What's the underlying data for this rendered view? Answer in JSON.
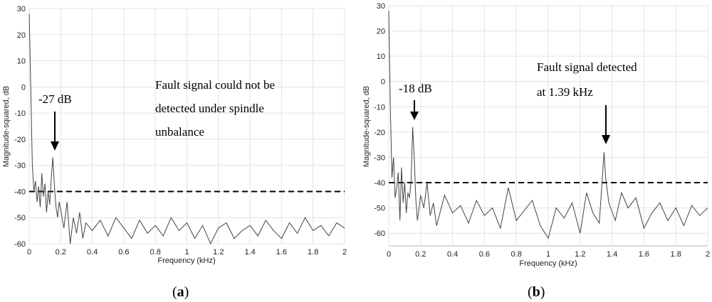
{
  "chart_data": [
    {
      "type": "line",
      "panel_label": "(a)",
      "caption": {
        "open": "(",
        "letter": "a",
        "close": ")"
      },
      "xlabel": "Frequency (kHz)",
      "ylabel": "Magnitude-squared, dB",
      "xlim": [
        0,
        2
      ],
      "ylim": [
        -60,
        30
      ],
      "xticks": [
        "0",
        "0.2",
        "0.4",
        "0.6",
        "0.8",
        "1",
        "1.2",
        "1.4",
        "1.6",
        "1.8",
        "2"
      ],
      "yticks": [
        "30",
        "20",
        "10",
        "0",
        "-10",
        "-20",
        "-30",
        "-40",
        "-50",
        "-60"
      ],
      "grid": true,
      "threshold_db": -40,
      "series": [
        {
          "x": [
            0,
            0.01,
            0.02,
            0.03,
            0.04,
            0.05,
            0.06,
            0.07,
            0.08,
            0.09,
            0.1,
            0.11,
            0.12,
            0.13,
            0.14,
            0.15,
            0.16,
            0.17,
            0.18,
            0.19,
            0.2,
            0.22,
            0.24,
            0.26,
            0.28,
            0.3,
            0.32,
            0.34,
            0.36,
            0.4,
            0.45,
            0.5,
            0.55,
            0.6,
            0.65,
            0.7,
            0.75,
            0.8,
            0.85,
            0.9,
            0.95,
            1.0,
            1.05,
            1.1,
            1.15,
            1.2,
            1.25,
            1.3,
            1.35,
            1.4,
            1.45,
            1.5,
            1.55,
            1.6,
            1.65,
            1.7,
            1.75,
            1.8,
            1.85,
            1.9,
            1.95,
            2.0
          ],
          "y": [
            28,
            0,
            -30,
            -40,
            -36,
            -44,
            -38,
            -46,
            -33,
            -42,
            -37,
            -48,
            -40,
            -45,
            -35,
            -27,
            -38,
            -46,
            -50,
            -44,
            -47,
            -54,
            -44,
            -60,
            -50,
            -56,
            -48,
            -58,
            -52,
            -55,
            -51,
            -57,
            -50,
            -54,
            -58,
            -51,
            -56,
            -53,
            -57,
            -50,
            -55,
            -52,
            -58,
            -53,
            -60,
            -54,
            -52,
            -58,
            -55,
            -53,
            -57,
            -51,
            -55,
            -58,
            -52,
            -56,
            -50,
            -55,
            -53,
            -57,
            -52,
            -54
          ]
        }
      ],
      "annotations": [
        {
          "text": "-27 dB",
          "x": 0.16,
          "y": -27
        },
        {
          "lines": [
            "Fault signal could not be",
            "detected under spindle",
            "unbalance"
          ]
        }
      ]
    },
    {
      "type": "line",
      "panel_label": "(b)",
      "caption": {
        "open": "(",
        "letter": "b",
        "close": ")"
      },
      "xlabel": "Frequency (kHz)",
      "ylabel": "Magnitude-squared, dB",
      "xlim": [
        0,
        2
      ],
      "ylim": [
        -65,
        30
      ],
      "xticks": [
        "0",
        "0.2",
        "0.4",
        "0.6",
        "0.8",
        "1",
        "1.2",
        "1.4",
        "1.6",
        "1.8",
        "2"
      ],
      "yticks": [
        "30",
        "20",
        "10",
        "0",
        "-10",
        "-20",
        "-30",
        "-40",
        "-50",
        "-60"
      ],
      "grid": true,
      "threshold_db": -40,
      "series": [
        {
          "x": [
            0,
            0.01,
            0.02,
            0.03,
            0.04,
            0.05,
            0.06,
            0.07,
            0.08,
            0.09,
            0.1,
            0.11,
            0.12,
            0.13,
            0.14,
            0.15,
            0.16,
            0.17,
            0.18,
            0.2,
            0.22,
            0.24,
            0.26,
            0.28,
            0.3,
            0.35,
            0.4,
            0.45,
            0.5,
            0.55,
            0.6,
            0.65,
            0.7,
            0.75,
            0.8,
            0.85,
            0.9,
            0.95,
            1.0,
            1.05,
            1.1,
            1.15,
            1.2,
            1.24,
            1.28,
            1.32,
            1.35,
            1.36,
            1.38,
            1.42,
            1.46,
            1.5,
            1.55,
            1.6,
            1.65,
            1.7,
            1.75,
            1.8,
            1.85,
            1.9,
            1.95,
            2.0
          ],
          "y": [
            28,
            -10,
            -38,
            -30,
            -46,
            -42,
            -36,
            -55,
            -34,
            -48,
            -40,
            -52,
            -44,
            -46,
            -39,
            -18,
            -30,
            -47,
            -55,
            -45,
            -50,
            -40,
            -53,
            -48,
            -57,
            -45,
            -52,
            -49,
            -56,
            -47,
            -53,
            -50,
            -58,
            -42,
            -55,
            -51,
            -47,
            -57,
            -62,
            -50,
            -54,
            -48,
            -60,
            -44,
            -52,
            -56,
            -28,
            -38,
            -48,
            -55,
            -44,
            -50,
            -46,
            -58,
            -52,
            -48,
            -55,
            -50,
            -57,
            -49,
            -53,
            -50
          ]
        }
      ],
      "annotations": [
        {
          "text": "-18 dB",
          "x": 0.16,
          "y": -18
        },
        {
          "lines": [
            "Fault signal detected",
            "at 1.39 kHz"
          ],
          "x": 1.37,
          "y": -28
        }
      ]
    }
  ]
}
